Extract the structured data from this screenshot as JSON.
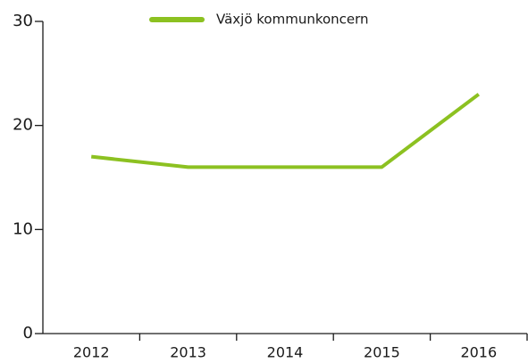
{
  "chart_data": {
    "type": "line",
    "categories": [
      "2012",
      "2013",
      "2014",
      "2015",
      "2016"
    ],
    "series": [
      {
        "name": "Växjö kommunkoncern",
        "color": "#8cc121",
        "values": [
          17,
          16,
          16,
          16,
          23
        ]
      }
    ],
    "ylim": [
      0,
      30
    ],
    "yticks": [
      0,
      10,
      20,
      30
    ],
    "legend": "top"
  }
}
